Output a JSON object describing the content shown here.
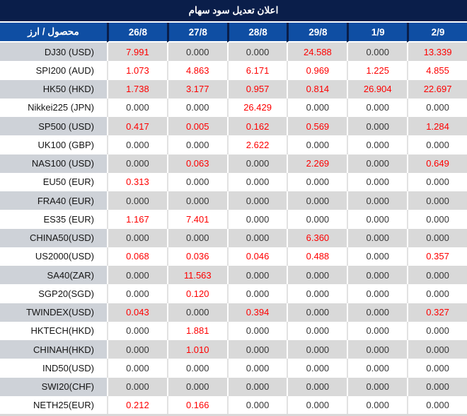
{
  "colors": {
    "title_bg": "#0a1e4a",
    "header_bg": "#0f4ea3",
    "row_gray": "#d9d9d9",
    "row_gray_label": "#ced2d8",
    "white_row_border": "#e2e2e2",
    "value_red": "#fe0000",
    "value_black": "#373737",
    "label_black": "#151515"
  },
  "chart_data": {
    "type": "table",
    "title": "اعلان تعديل سود سهام",
    "label_header": "محصول / ارز",
    "columns": [
      "26/8",
      "27/8",
      "28/8",
      "29/8",
      "1/9",
      "2/9"
    ],
    "zero_value": "0.000",
    "rows": [
      {
        "label": "DJ30 (USD)",
        "values": [
          "7.991",
          "0.000",
          "0.000",
          "24.588",
          "0.000",
          "13.339"
        ]
      },
      {
        "label": "SPI200 (AUD)",
        "values": [
          "1.073",
          "4.863",
          "6.171",
          "0.969",
          "1.225",
          "4.855"
        ]
      },
      {
        "label": "HK50 (HKD)",
        "values": [
          "1.738",
          "3.177",
          "0.957",
          "0.814",
          "26.904",
          "22.697"
        ]
      },
      {
        "label": "Nikkei225 (JPN)",
        "values": [
          "0.000",
          "0.000",
          "26.429",
          "0.000",
          "0.000",
          "0.000"
        ]
      },
      {
        "label": "SP500 (USD)",
        "values": [
          "0.417",
          "0.005",
          "0.162",
          "0.569",
          "0.000",
          "1.284"
        ]
      },
      {
        "label": "UK100 (GBP)",
        "values": [
          "0.000",
          "0.000",
          "2.622",
          "0.000",
          "0.000",
          "0.000"
        ]
      },
      {
        "label": "NAS100 (USD)",
        "values": [
          "0.000",
          "0.063",
          "0.000",
          "2.269",
          "0.000",
          "0.649"
        ]
      },
      {
        "label": "EU50 (EUR)",
        "values": [
          "0.313",
          "0.000",
          "0.000",
          "0.000",
          "0.000",
          "0.000"
        ]
      },
      {
        "label": "FRA40 (EUR)",
        "values": [
          "0.000",
          "0.000",
          "0.000",
          "0.000",
          "0.000",
          "0.000"
        ]
      },
      {
        "label": "ES35 (EUR)",
        "values": [
          "1.167",
          "7.401",
          "0.000",
          "0.000",
          "0.000",
          "0.000"
        ]
      },
      {
        "label": "CHINA50(USD)",
        "values": [
          "0.000",
          "0.000",
          "0.000",
          "6.360",
          "0.000",
          "0.000"
        ]
      },
      {
        "label": "US2000(USD)",
        "values": [
          "0.068",
          "0.036",
          "0.046",
          "0.488",
          "0.000",
          "0.357"
        ]
      },
      {
        "label": "SA40(ZAR)",
        "values": [
          "0.000",
          "11.563",
          "0.000",
          "0.000",
          "0.000",
          "0.000"
        ]
      },
      {
        "label": "SGP20(SGD)",
        "values": [
          "0.000",
          "0.120",
          "0.000",
          "0.000",
          "0.000",
          "0.000"
        ]
      },
      {
        "label": "TWINDEX(USD)",
        "values": [
          "0.043",
          "0.000",
          "0.394",
          "0.000",
          "0.000",
          "0.327"
        ]
      },
      {
        "label": "HKTECH(HKD)",
        "values": [
          "0.000",
          "1.881",
          "0.000",
          "0.000",
          "0.000",
          "0.000"
        ]
      },
      {
        "label": "CHINAH(HKD)",
        "values": [
          "0.000",
          "1.010",
          "0.000",
          "0.000",
          "0.000",
          "0.000"
        ]
      },
      {
        "label": "IND50(USD)",
        "values": [
          "0.000",
          "0.000",
          "0.000",
          "0.000",
          "0.000",
          "0.000"
        ]
      },
      {
        "label": "SWI20(CHF)",
        "values": [
          "0.000",
          "0.000",
          "0.000",
          "0.000",
          "0.000",
          "0.000"
        ]
      },
      {
        "label": "NETH25(EUR)",
        "values": [
          "0.212",
          "0.166",
          "0.000",
          "0.000",
          "0.000",
          "0.000"
        ]
      }
    ]
  }
}
